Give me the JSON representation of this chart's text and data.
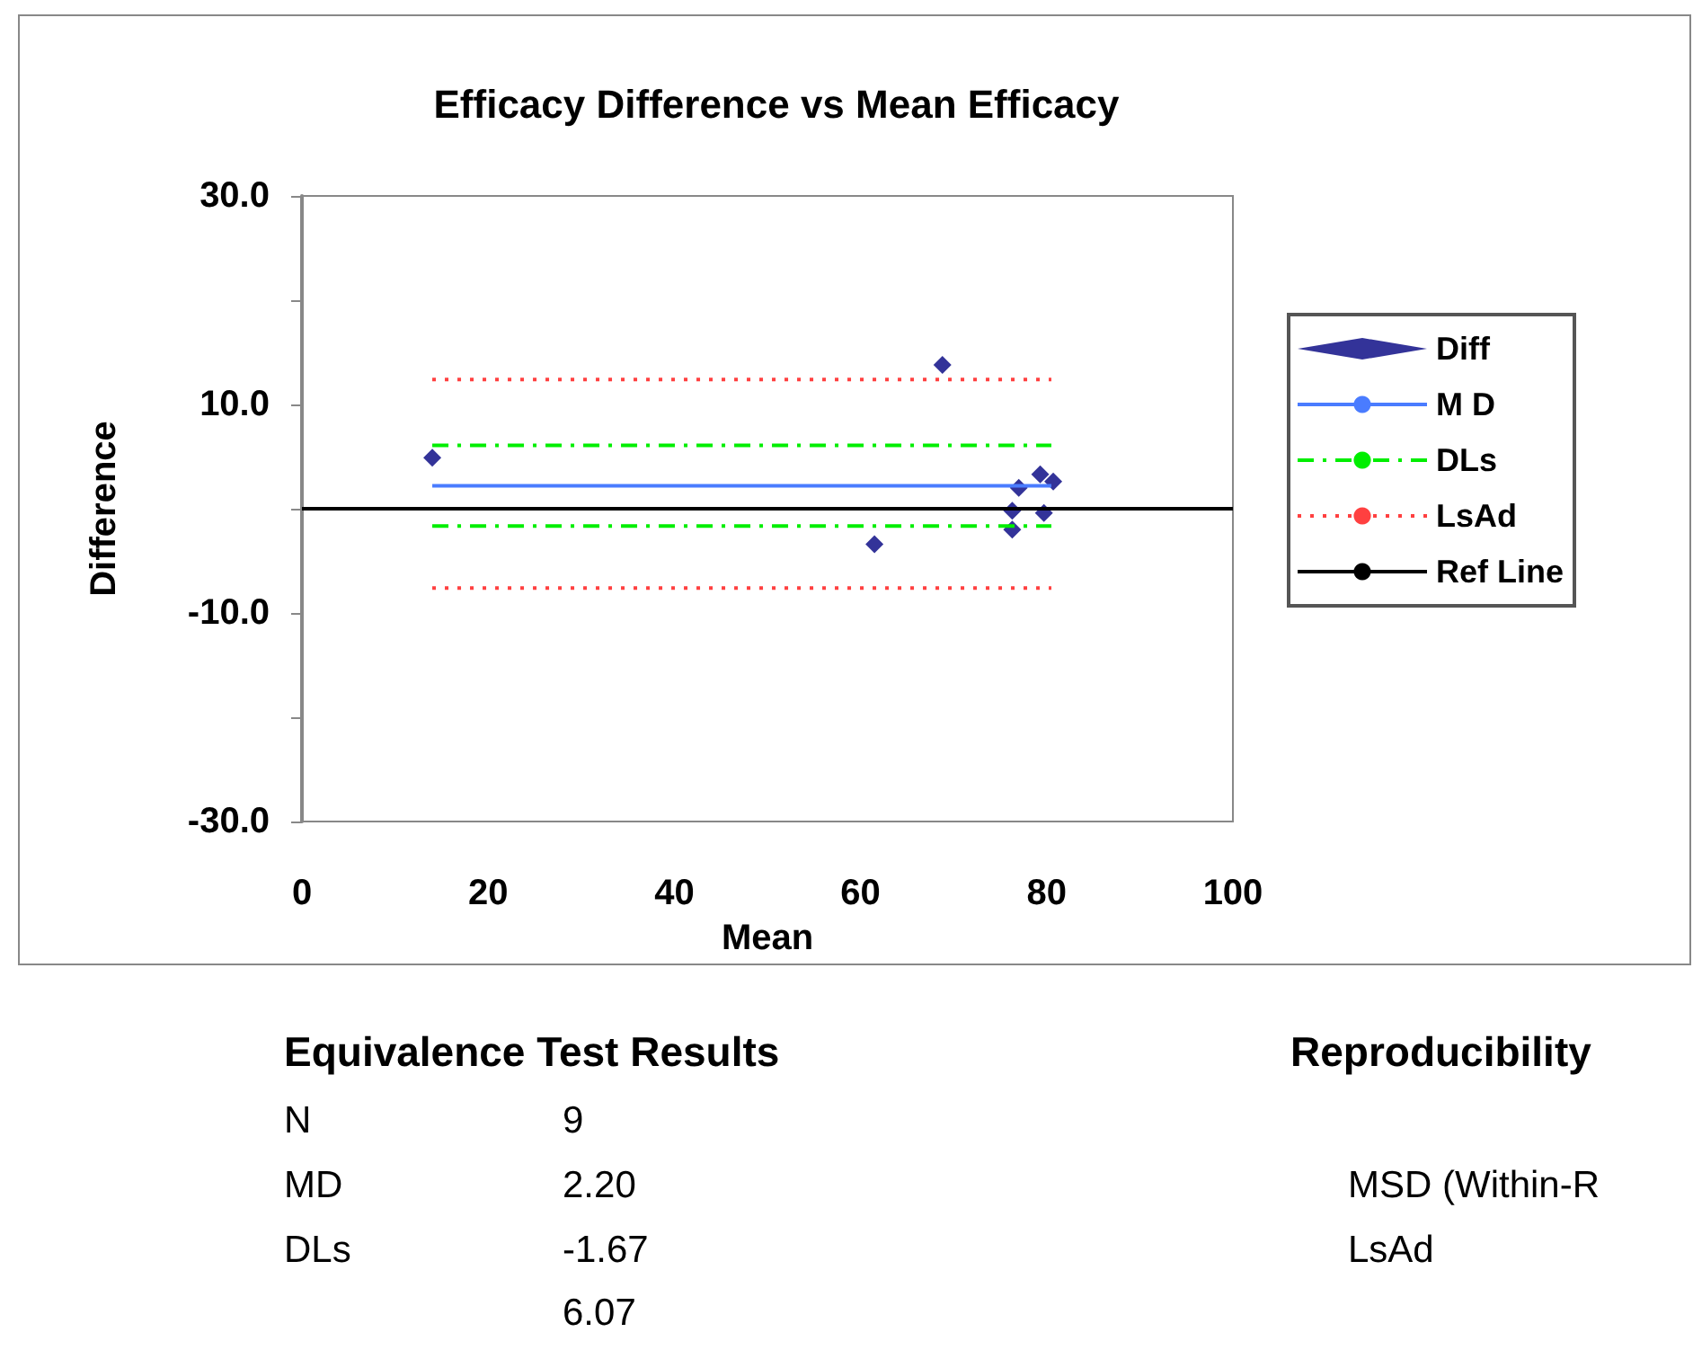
{
  "chart_data": {
    "type": "scatter",
    "title": "Efficacy Difference vs Mean Efficacy",
    "xlabel": "Mean",
    "ylabel": "Difference",
    "xlim": [
      0,
      100
    ],
    "xticks": [
      0,
      20,
      40,
      60,
      80,
      100
    ],
    "ylim": [
      -30,
      30
    ],
    "yticks": [
      {
        "value": -30,
        "label": "-30.0"
      },
      {
        "value": -20,
        "label": null
      },
      {
        "value": -10,
        "label": "-10.0"
      },
      {
        "value": 0,
        "label": null
      },
      {
        "value": 10,
        "label": "10.0"
      },
      {
        "value": 20,
        "label": null
      },
      {
        "value": 30,
        "label": "30.0"
      }
    ],
    "grid": false,
    "legend": "right",
    "series": [
      {
        "name": "Diff",
        "type": "scatter",
        "marker": "diamond",
        "color": "#000080",
        "x": [
          14.0,
          68.8,
          61.5,
          77.0,
          76.3,
          76.3,
          79.3,
          80.7,
          79.7
        ],
        "values": [
          4.9,
          13.8,
          -3.4,
          2.0,
          -0.2,
          -2.0,
          3.3,
          2.6,
          -0.4
        ]
      },
      {
        "name": "M D",
        "type": "line",
        "line_style": "solid",
        "color": "#4a7cff",
        "x": [
          14.0,
          80.5
        ],
        "values": [
          2.2,
          2.2
        ]
      },
      {
        "name": "DLs",
        "type": "line",
        "line_style": "dashed",
        "color": "#00ee00",
        "x": [
          14.0,
          80.5
        ],
        "values": [
          6.07,
          6.07
        ]
      },
      {
        "type": "line",
        "line_style": "dashed",
        "color": "#00ee00",
        "x": [
          14.0,
          80.5
        ],
        "values": [
          -1.67,
          -1.67
        ]
      },
      {
        "name": "LsAd",
        "type": "line",
        "line_style": "dotted",
        "color": "#ff4040",
        "x": [
          14.0,
          80.5
        ],
        "values": [
          12.4,
          12.4
        ]
      },
      {
        "type": "line",
        "line_style": "dotted",
        "color": "#ff4040",
        "x": [
          14.0,
          80.5
        ],
        "values": [
          -7.6,
          -7.6
        ]
      },
      {
        "name": "Ref Line",
        "type": "line",
        "line_style": "solid",
        "color": "#000000",
        "x": [
          0,
          100
        ],
        "values": [
          0,
          0
        ]
      }
    ],
    "annotations": [
      "Equivalence Test Results",
      "N",
      "9",
      "MD",
      "2.20",
      "DLs",
      "-1.67",
      "6.07",
      "Reproducibility",
      "MSD (Within-R",
      "LsAd"
    ]
  }
}
